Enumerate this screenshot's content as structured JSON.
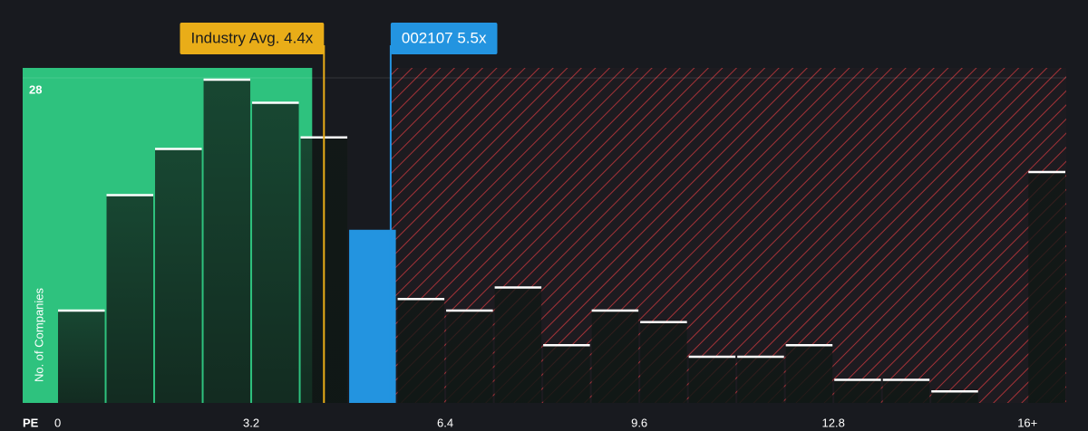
{
  "chart_data": {
    "type": "histogram",
    "x_label": "PE",
    "y_label": "No. of Companies",
    "bins": [
      0,
      0.8,
      1.6,
      2.4,
      3.2,
      4.0,
      4.8,
      5.6,
      6.4,
      7.2,
      8.0,
      8.8,
      9.6,
      10.4,
      11.2,
      12.0,
      12.8,
      13.6,
      14.4,
      15.2,
      16.0,
      16.8
    ],
    "values": [
      8,
      18,
      22,
      28,
      26,
      23,
      15,
      9,
      8,
      10,
      5,
      8,
      7,
      4,
      4,
      5,
      2,
      2,
      1,
      0,
      20
    ],
    "xlim": [
      0,
      16.4
    ],
    "xticks": [
      0,
      3.2,
      6.4,
      9.6,
      12.8,
      {
        "value": 16,
        "label": "16+"
      }
    ],
    "ylim": [
      0,
      28
    ],
    "yticks": [
      28
    ],
    "annotations": [
      {
        "label": "Industry Avg. 4.4x",
        "value": 4.4,
        "color": "#e9ad18"
      },
      {
        "label": "002107 5.5x",
        "value": 5.5,
        "color": "#2394e0"
      }
    ],
    "good_color": "#2ec27e",
    "bad_color": "#c0373c"
  }
}
